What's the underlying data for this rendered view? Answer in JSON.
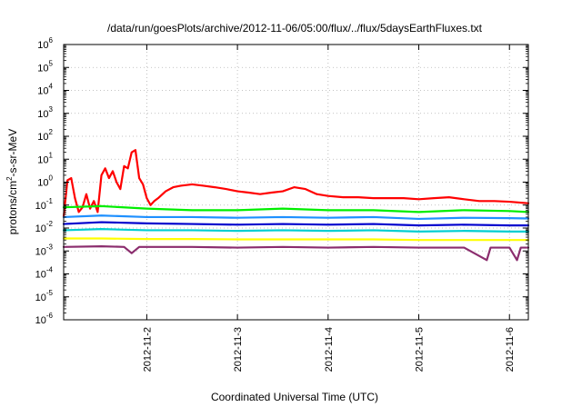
{
  "chart_data": {
    "type": "line",
    "title": "/data/run/goesPlots/archive/2012-11-06/05:00/flux/../flux/5daysEarthFluxes.txt",
    "xlabel": "Coordinated Universal Time (UTC)",
    "ylabel_parts": {
      "pre": "protons/cm",
      "sup": "2",
      "post": "-s-sr-MeV"
    },
    "yscale": "log",
    "ylim_exp": [
      -6,
      6
    ],
    "y_ticks": [
      {
        "base": "10",
        "exp": "6"
      },
      {
        "base": "10",
        "exp": "5"
      },
      {
        "base": "10",
        "exp": "4"
      },
      {
        "base": "10",
        "exp": "3"
      },
      {
        "base": "10",
        "exp": "2"
      },
      {
        "base": "10",
        "exp": "1"
      },
      {
        "base": "10",
        "exp": "0"
      },
      {
        "base": "10",
        "exp": "-1"
      },
      {
        "base": "10",
        "exp": "-2"
      },
      {
        "base": "10",
        "exp": "-3"
      },
      {
        "base": "10",
        "exp": "-4"
      },
      {
        "base": "10",
        "exp": "-5"
      },
      {
        "base": "10",
        "exp": "-6"
      }
    ],
    "x_range": [
      "2012-11-01T02:00",
      "2012-11-06T05:00"
    ],
    "x_ticks": [
      "2012-11-2",
      "2012-11-3",
      "2012-11-4",
      "2012-11-5",
      "2012-11-6"
    ],
    "grid": true,
    "series": [
      {
        "color": "#ff0000",
        "points": [
          [
            "2012-11-01T02:00",
            0.03
          ],
          [
            "2012-11-01T03:00",
            1.2
          ],
          [
            "2012-11-01T04:00",
            1.5
          ],
          [
            "2012-11-01T05:00",
            0.2
          ],
          [
            "2012-11-01T06:00",
            0.05
          ],
          [
            "2012-11-01T07:00",
            0.08
          ],
          [
            "2012-11-01T08:00",
            0.3
          ],
          [
            "2012-11-01T09:00",
            0.07
          ],
          [
            "2012-11-01T10:00",
            0.15
          ],
          [
            "2012-11-01T11:00",
            0.05
          ],
          [
            "2012-11-01T12:00",
            2.0
          ],
          [
            "2012-11-01T13:00",
            4.0
          ],
          [
            "2012-11-01T14:00",
            1.5
          ],
          [
            "2012-11-01T15:00",
            3.0
          ],
          [
            "2012-11-01T16:00",
            1.0
          ],
          [
            "2012-11-01T17:00",
            0.5
          ],
          [
            "2012-11-01T18:00",
            5.0
          ],
          [
            "2012-11-01T19:00",
            4.0
          ],
          [
            "2012-11-01T20:00",
            20.0
          ],
          [
            "2012-11-01T21:00",
            25.0
          ],
          [
            "2012-11-01T22:00",
            1.5
          ],
          [
            "2012-11-01T23:00",
            0.8
          ],
          [
            "2012-11-02T00:00",
            0.2
          ],
          [
            "2012-11-02T01:00",
            0.1
          ],
          [
            "2012-11-02T02:00",
            0.15
          ],
          [
            "2012-11-02T03:00",
            0.2
          ],
          [
            "2012-11-02T05:00",
            0.4
          ],
          [
            "2012-11-02T07:00",
            0.6
          ],
          [
            "2012-11-02T09:00",
            0.7
          ],
          [
            "2012-11-02T12:00",
            0.8
          ],
          [
            "2012-11-02T15:00",
            0.7
          ],
          [
            "2012-11-02T18:00",
            0.6
          ],
          [
            "2012-11-02T21:00",
            0.5
          ],
          [
            "2012-11-03T00:00",
            0.4
          ],
          [
            "2012-11-03T03:00",
            0.35
          ],
          [
            "2012-11-03T06:00",
            0.3
          ],
          [
            "2012-11-03T09:00",
            0.35
          ],
          [
            "2012-11-03T12:00",
            0.4
          ],
          [
            "2012-11-03T15:00",
            0.6
          ],
          [
            "2012-11-03T18:00",
            0.5
          ],
          [
            "2012-11-03T21:00",
            0.3
          ],
          [
            "2012-11-04T00:00",
            0.25
          ],
          [
            "2012-11-04T04:00",
            0.22
          ],
          [
            "2012-11-04T08:00",
            0.22
          ],
          [
            "2012-11-04T12:00",
            0.2
          ],
          [
            "2012-11-04T16:00",
            0.2
          ],
          [
            "2012-11-04T20:00",
            0.2
          ],
          [
            "2012-11-05T00:00",
            0.18
          ],
          [
            "2012-11-05T04:00",
            0.2
          ],
          [
            "2012-11-05T08:00",
            0.22
          ],
          [
            "2012-11-05T12:00",
            0.18
          ],
          [
            "2012-11-05T16:00",
            0.15
          ],
          [
            "2012-11-05T20:00",
            0.15
          ],
          [
            "2012-11-06T00:00",
            0.14
          ],
          [
            "2012-11-06T05:00",
            0.12
          ]
        ]
      },
      {
        "color": "#00ee00",
        "points": [
          [
            "2012-11-01T02:00",
            0.08
          ],
          [
            "2012-11-01T12:00",
            0.09
          ],
          [
            "2012-11-02T00:00",
            0.07
          ],
          [
            "2012-11-02T12:00",
            0.06
          ],
          [
            "2012-11-03T00:00",
            0.06
          ],
          [
            "2012-11-03T12:00",
            0.07
          ],
          [
            "2012-11-04T00:00",
            0.06
          ],
          [
            "2012-11-04T12:00",
            0.06
          ],
          [
            "2012-11-05T00:00",
            0.05
          ],
          [
            "2012-11-05T12:00",
            0.06
          ],
          [
            "2012-11-06T00:00",
            0.055
          ],
          [
            "2012-11-06T05:00",
            0.05
          ]
        ]
      },
      {
        "color": "#1e90ff",
        "points": [
          [
            "2012-11-01T02:00",
            0.03
          ],
          [
            "2012-11-01T12:00",
            0.035
          ],
          [
            "2012-11-02T00:00",
            0.03
          ],
          [
            "2012-11-02T12:00",
            0.03
          ],
          [
            "2012-11-03T00:00",
            0.028
          ],
          [
            "2012-11-03T12:00",
            0.03
          ],
          [
            "2012-11-04T00:00",
            0.028
          ],
          [
            "2012-11-04T12:00",
            0.03
          ],
          [
            "2012-11-05T00:00",
            0.025
          ],
          [
            "2012-11-05T12:00",
            0.028
          ],
          [
            "2012-11-06T00:00",
            0.027
          ],
          [
            "2012-11-06T05:00",
            0.026
          ]
        ]
      },
      {
        "color": "#0000cd",
        "points": [
          [
            "2012-11-01T02:00",
            0.015
          ],
          [
            "2012-11-01T12:00",
            0.018
          ],
          [
            "2012-11-02T00:00",
            0.016
          ],
          [
            "2012-11-02T12:00",
            0.015
          ],
          [
            "2012-11-03T00:00",
            0.014
          ],
          [
            "2012-11-03T12:00",
            0.015
          ],
          [
            "2012-11-04T00:00",
            0.014
          ],
          [
            "2012-11-04T12:00",
            0.015
          ],
          [
            "2012-11-05T00:00",
            0.013
          ],
          [
            "2012-11-05T12:00",
            0.014
          ],
          [
            "2012-11-06T00:00",
            0.013
          ],
          [
            "2012-11-06T05:00",
            0.013
          ]
        ]
      },
      {
        "color": "#00ced1",
        "points": [
          [
            "2012-11-01T02:00",
            0.008
          ],
          [
            "2012-11-01T12:00",
            0.009
          ],
          [
            "2012-11-02T00:00",
            0.008
          ],
          [
            "2012-11-02T12:00",
            0.008
          ],
          [
            "2012-11-03T00:00",
            0.0075
          ],
          [
            "2012-11-03T12:00",
            0.008
          ],
          [
            "2012-11-04T00:00",
            0.0075
          ],
          [
            "2012-11-04T12:00",
            0.008
          ],
          [
            "2012-11-05T00:00",
            0.007
          ],
          [
            "2012-11-05T12:00",
            0.0075
          ],
          [
            "2012-11-06T00:00",
            0.007
          ],
          [
            "2012-11-06T05:00",
            0.007
          ]
        ]
      },
      {
        "color": "#ffff00",
        "points": [
          [
            "2012-11-01T02:00",
            0.0035
          ],
          [
            "2012-11-01T12:00",
            0.0035
          ],
          [
            "2012-11-02T00:00",
            0.0033
          ],
          [
            "2012-11-02T12:00",
            0.0033
          ],
          [
            "2012-11-03T00:00",
            0.0032
          ],
          [
            "2012-11-03T12:00",
            0.0032
          ],
          [
            "2012-11-04T00:00",
            0.0032
          ],
          [
            "2012-11-04T12:00",
            0.0032
          ],
          [
            "2012-11-05T00:00",
            0.003
          ],
          [
            "2012-11-05T12:00",
            0.003
          ],
          [
            "2012-11-06T00:00",
            0.003
          ],
          [
            "2012-11-06T05:00",
            0.003
          ]
        ]
      },
      {
        "color": "#8b2d6e",
        "points": [
          [
            "2012-11-01T02:00",
            0.0015
          ],
          [
            "2012-11-01T12:00",
            0.0016
          ],
          [
            "2012-11-01T18:00",
            0.0015
          ],
          [
            "2012-11-01T20:00",
            0.0008
          ],
          [
            "2012-11-01T22:00",
            0.0015
          ],
          [
            "2012-11-02T12:00",
            0.0015
          ],
          [
            "2012-11-03T00:00",
            0.0014
          ],
          [
            "2012-11-03T12:00",
            0.0015
          ],
          [
            "2012-11-04T00:00",
            0.0014
          ],
          [
            "2012-11-04T12:00",
            0.0015
          ],
          [
            "2012-11-05T00:00",
            0.0014
          ],
          [
            "2012-11-05T12:00",
            0.0014
          ],
          [
            "2012-11-05T18:00",
            0.0004
          ],
          [
            "2012-11-05T19:00",
            0.0014
          ],
          [
            "2012-11-06T00:00",
            0.0014
          ],
          [
            "2012-11-06T02:00",
            0.0004
          ],
          [
            "2012-11-06T03:00",
            0.0014
          ],
          [
            "2012-11-06T05:00",
            0.0014
          ]
        ]
      }
    ]
  }
}
